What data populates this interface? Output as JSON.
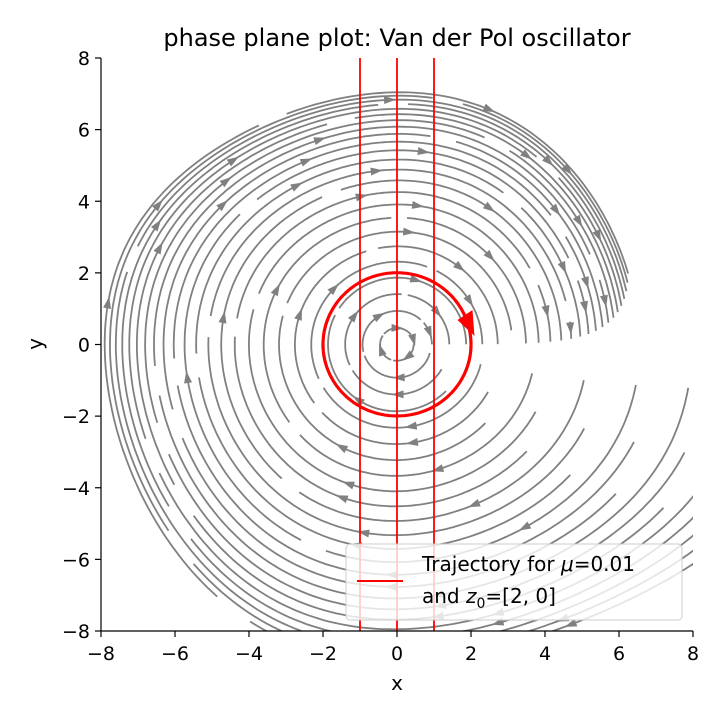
{
  "chart_data": {
    "type": "line",
    "title": "phase plane plot: Van der Pol oscillator",
    "xlabel": "x",
    "ylabel": "y",
    "xlim": [
      -8,
      8
    ],
    "ylim": [
      -8,
      8
    ],
    "xticks": [
      -8,
      -6,
      -4,
      -2,
      0,
      2,
      4,
      6,
      8
    ],
    "yticks": [
      -8,
      -6,
      -4,
      -2,
      0,
      2,
      4,
      6,
      8
    ],
    "xtick_labels": [
      "−8",
      "−6",
      "−4",
      "−2",
      "0",
      "2",
      "4",
      "6",
      "8"
    ],
    "ytick_labels": [
      "−8",
      "−6",
      "−4",
      "−2",
      "0",
      "2",
      "4",
      "6",
      "8"
    ],
    "mu": 0.01,
    "streamline_color": "#808080",
    "trajectory_color": "#ff0000",
    "trajectory": {
      "name": "Trajectory for μ=0.01 and z0=[2, 0]",
      "initial": [
        2,
        0
      ],
      "limit_cycle_radius": 2.0
    },
    "nullclines_x": [
      -1,
      0,
      1
    ],
    "legend": {
      "line1_prefix": "Trajectory for ",
      "line1_var": "μ",
      "line1_suffix": "=0.01",
      "line2_prefix": "and ",
      "line2_var": "z",
      "line2_sub": "0",
      "line2_suffix": "=[2, 0]",
      "placement": "lower-right"
    },
    "grid": false
  }
}
